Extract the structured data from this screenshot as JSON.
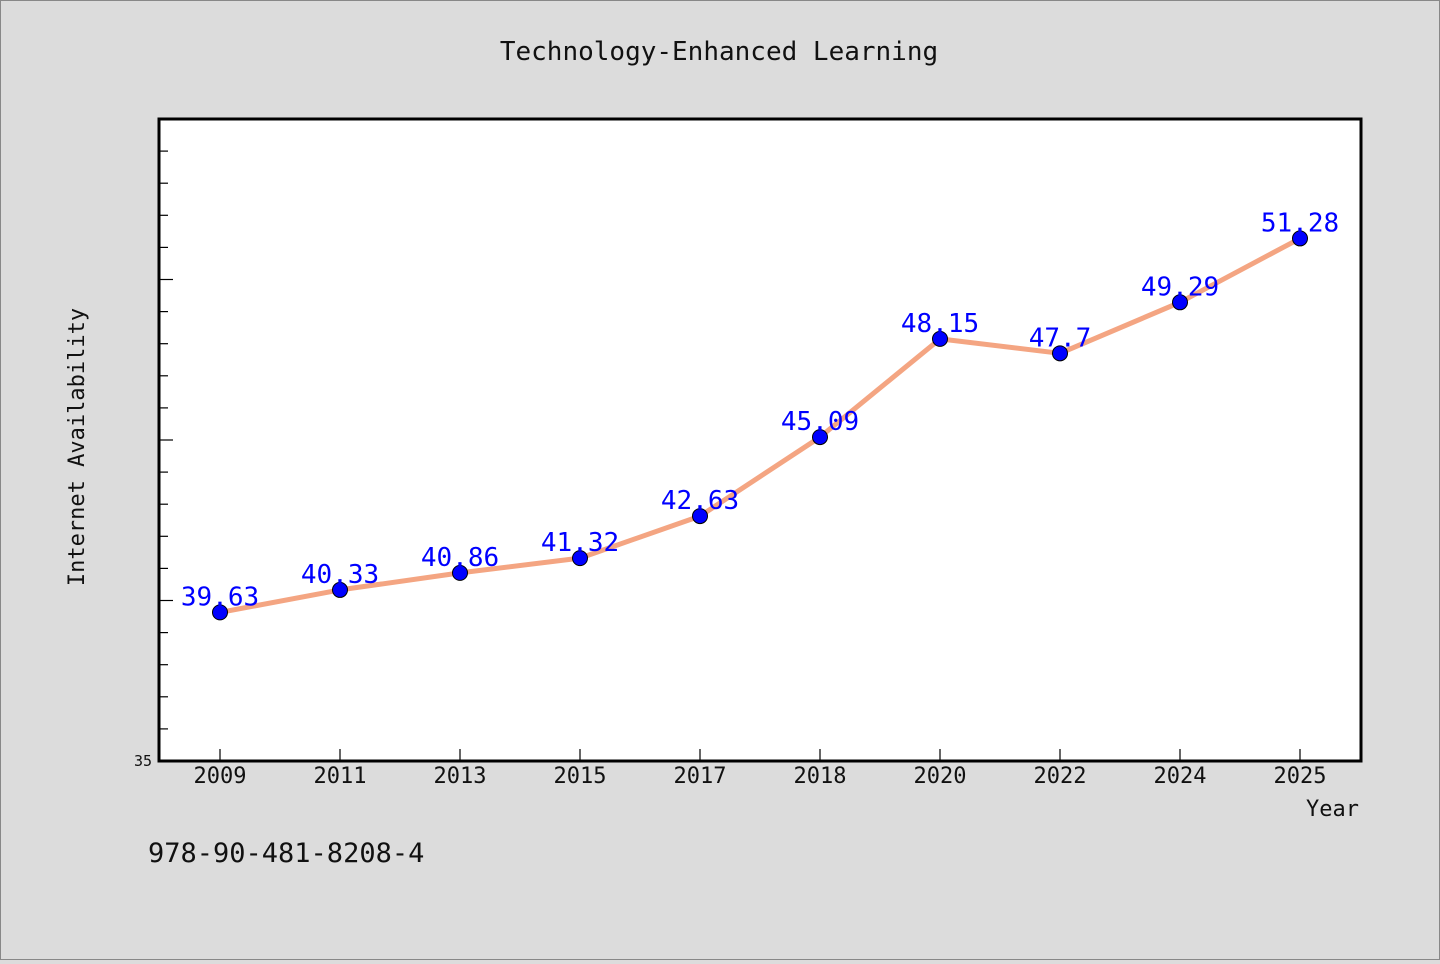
{
  "chart_data": {
    "type": "line",
    "title": "Technology-Enhanced Learning",
    "xlabel": "Year",
    "ylabel": "Internet Availability",
    "categories": [
      "2009",
      "2011",
      "2013",
      "2015",
      "2017",
      "2018",
      "2020",
      "2022",
      "2024",
      "2025"
    ],
    "series": [
      {
        "values": [
          39.63,
          40.33,
          40.86,
          41.32,
          42.63,
          45.09,
          48.15,
          47.7,
          49.29,
          51.28
        ],
        "labels": [
          "39.63",
          "40.33",
          "40.86",
          "41.32",
          "42.63",
          "45.09",
          "48.15",
          "47.7",
          "49.29",
          "51.28"
        ]
      }
    ],
    "ylim": [
      35,
      55
    ],
    "y_tick_labels": [
      "35"
    ],
    "grid": false,
    "legend": "none",
    "colors": {
      "line": "#f4a582",
      "marker": "#0000ff",
      "label": "#0000ff",
      "background": "#dcdcdc",
      "plot_background": "#ffffff"
    }
  },
  "footer": {
    "isbn": "978-90-481-8208-4"
  }
}
